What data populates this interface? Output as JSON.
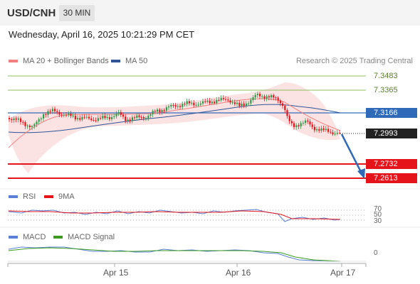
{
  "header": {
    "symbol": "USD/CNH",
    "timeframe": "30 MIN"
  },
  "datetime": "Wednesday, April 16, 2025 10:21:29 PM CET",
  "legend": {
    "ma20_label": "MA 20 + Bollinger Bands",
    "ma50_label": "MA 50",
    "ma20_color": "#f08080",
    "ma50_color": "#2f5597",
    "credit": "Research © 2025 Trading Central"
  },
  "levels": {
    "r2": "7.3483",
    "r1": "7.3365",
    "pivot": "7.3166",
    "last": "7.2993",
    "s1": "7.2732",
    "s2": "7.2613"
  },
  "rsi": {
    "label": "RSI",
    "ma_label": "9MA",
    "color": "#5b7fd6",
    "ma_color": "#e5141b",
    "levels": [
      "70",
      "50",
      "30"
    ]
  },
  "macd": {
    "label": "MACD",
    "signal_label": "MACD Signal",
    "color": "#5b7fd6",
    "signal_color": "#3b9b1f",
    "zero": "0"
  },
  "x_axis": {
    "labels": [
      "Apr 15",
      "Apr 16",
      "Apr 17"
    ]
  },
  "colors": {
    "up": "#2e9a4a",
    "down": "#e5141b",
    "arrow": "#2f6ab8",
    "support": "#e5141b",
    "resistance": "#8cbf5a",
    "pivot": "#2f6ab8"
  }
}
